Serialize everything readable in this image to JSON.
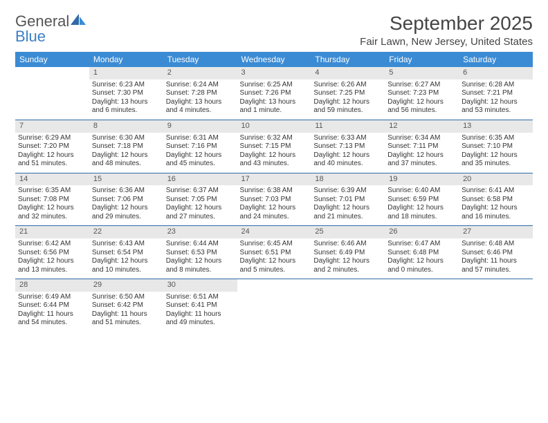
{
  "logo": {
    "general": "General",
    "blue": "Blue"
  },
  "title": "September 2025",
  "location": "Fair Lawn, New Jersey, United States",
  "day_headers": [
    "Sunday",
    "Monday",
    "Tuesday",
    "Wednesday",
    "Thursday",
    "Friday",
    "Saturday"
  ],
  "colors": {
    "header_bg": "#3b8bd4",
    "header_text": "#ffffff",
    "daynum_bg": "#e8e8e8",
    "row_border": "#2e6aa8",
    "text": "#333333",
    "logo_gray": "#555555",
    "logo_blue": "#3b7fc4"
  },
  "weeks": [
    {
      "nums": [
        "",
        "1",
        "2",
        "3",
        "4",
        "5",
        "6"
      ],
      "cells": [
        {
          "empty": true
        },
        {
          "sunrise": "Sunrise: 6:23 AM",
          "sunset": "Sunset: 7:30 PM",
          "daylight": "Daylight: 13 hours and 6 minutes."
        },
        {
          "sunrise": "Sunrise: 6:24 AM",
          "sunset": "Sunset: 7:28 PM",
          "daylight": "Daylight: 13 hours and 4 minutes."
        },
        {
          "sunrise": "Sunrise: 6:25 AM",
          "sunset": "Sunset: 7:26 PM",
          "daylight": "Daylight: 13 hours and 1 minute."
        },
        {
          "sunrise": "Sunrise: 6:26 AM",
          "sunset": "Sunset: 7:25 PM",
          "daylight": "Daylight: 12 hours and 59 minutes."
        },
        {
          "sunrise": "Sunrise: 6:27 AM",
          "sunset": "Sunset: 7:23 PM",
          "daylight": "Daylight: 12 hours and 56 minutes."
        },
        {
          "sunrise": "Sunrise: 6:28 AM",
          "sunset": "Sunset: 7:21 PM",
          "daylight": "Daylight: 12 hours and 53 minutes."
        }
      ]
    },
    {
      "nums": [
        "7",
        "8",
        "9",
        "10",
        "11",
        "12",
        "13"
      ],
      "cells": [
        {
          "sunrise": "Sunrise: 6:29 AM",
          "sunset": "Sunset: 7:20 PM",
          "daylight": "Daylight: 12 hours and 51 minutes."
        },
        {
          "sunrise": "Sunrise: 6:30 AM",
          "sunset": "Sunset: 7:18 PM",
          "daylight": "Daylight: 12 hours and 48 minutes."
        },
        {
          "sunrise": "Sunrise: 6:31 AM",
          "sunset": "Sunset: 7:16 PM",
          "daylight": "Daylight: 12 hours and 45 minutes."
        },
        {
          "sunrise": "Sunrise: 6:32 AM",
          "sunset": "Sunset: 7:15 PM",
          "daylight": "Daylight: 12 hours and 43 minutes."
        },
        {
          "sunrise": "Sunrise: 6:33 AM",
          "sunset": "Sunset: 7:13 PM",
          "daylight": "Daylight: 12 hours and 40 minutes."
        },
        {
          "sunrise": "Sunrise: 6:34 AM",
          "sunset": "Sunset: 7:11 PM",
          "daylight": "Daylight: 12 hours and 37 minutes."
        },
        {
          "sunrise": "Sunrise: 6:35 AM",
          "sunset": "Sunset: 7:10 PM",
          "daylight": "Daylight: 12 hours and 35 minutes."
        }
      ]
    },
    {
      "nums": [
        "14",
        "15",
        "16",
        "17",
        "18",
        "19",
        "20"
      ],
      "cells": [
        {
          "sunrise": "Sunrise: 6:35 AM",
          "sunset": "Sunset: 7:08 PM",
          "daylight": "Daylight: 12 hours and 32 minutes."
        },
        {
          "sunrise": "Sunrise: 6:36 AM",
          "sunset": "Sunset: 7:06 PM",
          "daylight": "Daylight: 12 hours and 29 minutes."
        },
        {
          "sunrise": "Sunrise: 6:37 AM",
          "sunset": "Sunset: 7:05 PM",
          "daylight": "Daylight: 12 hours and 27 minutes."
        },
        {
          "sunrise": "Sunrise: 6:38 AM",
          "sunset": "Sunset: 7:03 PM",
          "daylight": "Daylight: 12 hours and 24 minutes."
        },
        {
          "sunrise": "Sunrise: 6:39 AM",
          "sunset": "Sunset: 7:01 PM",
          "daylight": "Daylight: 12 hours and 21 minutes."
        },
        {
          "sunrise": "Sunrise: 6:40 AM",
          "sunset": "Sunset: 6:59 PM",
          "daylight": "Daylight: 12 hours and 18 minutes."
        },
        {
          "sunrise": "Sunrise: 6:41 AM",
          "sunset": "Sunset: 6:58 PM",
          "daylight": "Daylight: 12 hours and 16 minutes."
        }
      ]
    },
    {
      "nums": [
        "21",
        "22",
        "23",
        "24",
        "25",
        "26",
        "27"
      ],
      "cells": [
        {
          "sunrise": "Sunrise: 6:42 AM",
          "sunset": "Sunset: 6:56 PM",
          "daylight": "Daylight: 12 hours and 13 minutes."
        },
        {
          "sunrise": "Sunrise: 6:43 AM",
          "sunset": "Sunset: 6:54 PM",
          "daylight": "Daylight: 12 hours and 10 minutes."
        },
        {
          "sunrise": "Sunrise: 6:44 AM",
          "sunset": "Sunset: 6:53 PM",
          "daylight": "Daylight: 12 hours and 8 minutes."
        },
        {
          "sunrise": "Sunrise: 6:45 AM",
          "sunset": "Sunset: 6:51 PM",
          "daylight": "Daylight: 12 hours and 5 minutes."
        },
        {
          "sunrise": "Sunrise: 6:46 AM",
          "sunset": "Sunset: 6:49 PM",
          "daylight": "Daylight: 12 hours and 2 minutes."
        },
        {
          "sunrise": "Sunrise: 6:47 AM",
          "sunset": "Sunset: 6:48 PM",
          "daylight": "Daylight: 12 hours and 0 minutes."
        },
        {
          "sunrise": "Sunrise: 6:48 AM",
          "sunset": "Sunset: 6:46 PM",
          "daylight": "Daylight: 11 hours and 57 minutes."
        }
      ]
    },
    {
      "nums": [
        "28",
        "29",
        "30",
        "",
        "",
        "",
        ""
      ],
      "cells": [
        {
          "sunrise": "Sunrise: 6:49 AM",
          "sunset": "Sunset: 6:44 PM",
          "daylight": "Daylight: 11 hours and 54 minutes."
        },
        {
          "sunrise": "Sunrise: 6:50 AM",
          "sunset": "Sunset: 6:42 PM",
          "daylight": "Daylight: 11 hours and 51 minutes."
        },
        {
          "sunrise": "Sunrise: 6:51 AM",
          "sunset": "Sunset: 6:41 PM",
          "daylight": "Daylight: 11 hours and 49 minutes."
        },
        {
          "empty": true
        },
        {
          "empty": true
        },
        {
          "empty": true
        },
        {
          "empty": true
        }
      ]
    }
  ]
}
